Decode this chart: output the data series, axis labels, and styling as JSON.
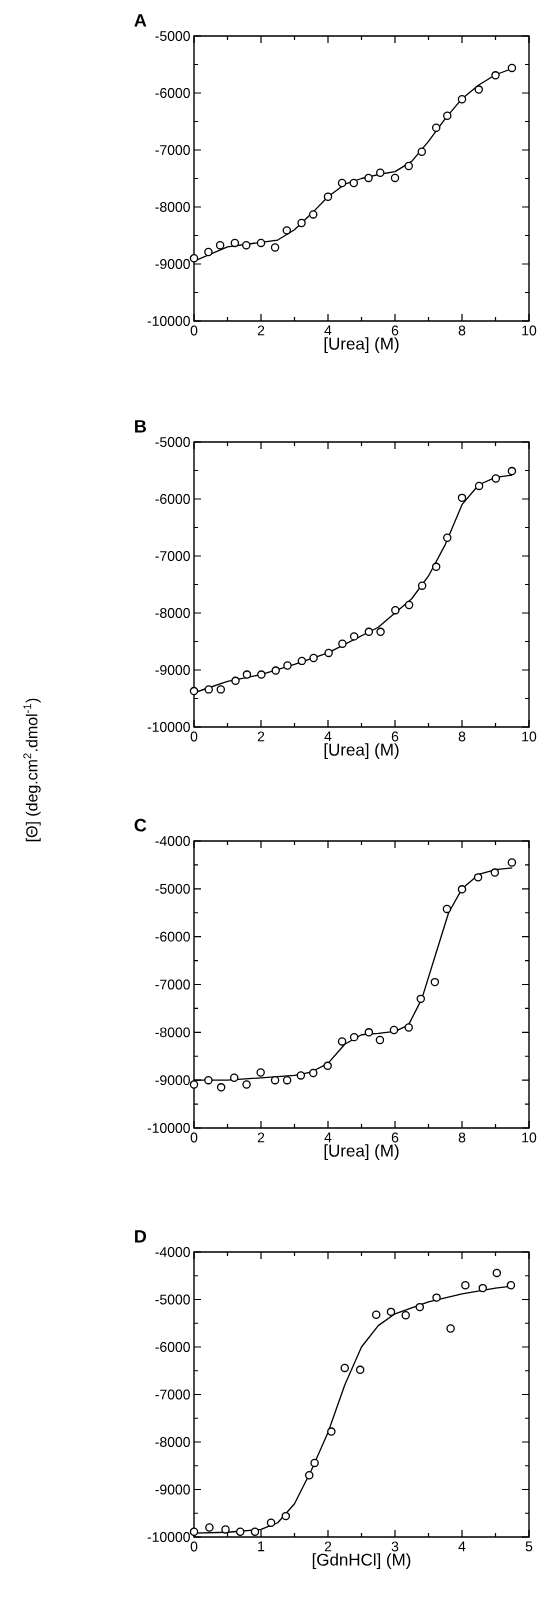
{
  "chart_data": [
    {
      "type": "scatter",
      "title": "A",
      "xlabel": "[Urea] (M)",
      "xlim": [
        0,
        10
      ],
      "xticks": [
        0,
        2,
        4,
        6,
        8,
        10
      ],
      "ylim": [
        -10000,
        -5000
      ],
      "yticks": [
        -10000,
        -9000,
        -8000,
        -7000,
        -6000,
        -5000
      ],
      "series": [
        {
          "marker": "circle",
          "color": "#000000",
          "x": [
            0,
            0.43,
            0.78,
            1.22,
            1.56,
            2.0,
            2.42,
            2.77,
            3.21,
            3.56,
            4.0,
            4.42,
            4.77,
            5.21,
            5.56,
            6.0,
            6.41,
            6.8,
            7.23,
            7.56,
            8.0,
            8.5,
            9.0,
            9.49
          ],
          "values": [
            -8900,
            -8790,
            -8670,
            -8630,
            -8670,
            -8630,
            -8710,
            -8410,
            -8280,
            -8130,
            -7820,
            -7580,
            -7580,
            -7490,
            -7400,
            -7490,
            -7280,
            -7030,
            -6610,
            -6400,
            -6110,
            -5940,
            -5690,
            -5560
          ]
        },
        {
          "type": "line",
          "marker": "none",
          "color": "#000000",
          "x": [
            0,
            1,
            2,
            2.5,
            3,
            3.5,
            4,
            4.5,
            5,
            5.5,
            6,
            6.5,
            7,
            7.5,
            8,
            8.5,
            9,
            9.5
          ],
          "values": [
            -8950,
            -8700,
            -8620,
            -8580,
            -8400,
            -8120,
            -7820,
            -7600,
            -7500,
            -7430,
            -7380,
            -7200,
            -6850,
            -6450,
            -6100,
            -5860,
            -5680,
            -5570
          ]
        }
      ]
    },
    {
      "type": "scatter",
      "title": "B",
      "xlabel": "[Urea] (M)",
      "ylabel": "[Θ] (deg.cm$^{2}$.dmol$^{-1}$)",
      "xlim": [
        0,
        10
      ],
      "xticks": [
        0,
        2,
        4,
        6,
        8,
        10
      ],
      "ylim": [
        -10000,
        -5000
      ],
      "yticks": [
        -10000,
        -9000,
        -8000,
        -7000,
        -6000,
        -5000
      ],
      "series": [
        {
          "marker": "circle",
          "color": "#000000",
          "x": [
            0,
            0.44,
            0.8,
            1.24,
            1.58,
            2.01,
            2.44,
            2.79,
            3.22,
            3.57,
            4.02,
            4.43,
            4.78,
            5.22,
            5.57,
            6.01,
            6.42,
            6.81,
            7.23,
            7.56,
            8.0,
            8.51,
            9.01,
            9.49
          ],
          "values": [
            -9370,
            -9340,
            -9340,
            -9190,
            -9080,
            -9080,
            -9010,
            -8920,
            -8840,
            -8790,
            -8700,
            -8540,
            -8410,
            -8330,
            -8330,
            -7950,
            -7860,
            -7520,
            -7190,
            -6680,
            -5980,
            -5770,
            -5640,
            -5510
          ]
        },
        {
          "type": "line",
          "marker": "none",
          "color": "#000000",
          "x": [
            0,
            1,
            2,
            3,
            4,
            5,
            5.5,
            6,
            6.5,
            7,
            7.5,
            8,
            8.5,
            9,
            9.5
          ],
          "values": [
            -9400,
            -9200,
            -9080,
            -8900,
            -8700,
            -8400,
            -8250,
            -8000,
            -7750,
            -7350,
            -6800,
            -6100,
            -5750,
            -5620,
            -5580
          ]
        }
      ]
    },
    {
      "type": "scatter",
      "title": "C",
      "xlabel": "[Urea] (M)",
      "xlim": [
        0,
        10
      ],
      "xticks": [
        0,
        2,
        4,
        6,
        8,
        10
      ],
      "ylim": [
        -10000,
        -4000
      ],
      "yticks": [
        -10000,
        -9000,
        -8000,
        -7000,
        -6000,
        -5000,
        -4000
      ],
      "series": [
        {
          "marker": "circle",
          "color": "#000000",
          "x": [
            0,
            0.43,
            0.81,
            1.2,
            1.57,
            1.99,
            2.42,
            2.78,
            3.19,
            3.56,
            3.99,
            4.42,
            4.78,
            5.22,
            5.55,
            5.97,
            6.41,
            6.77,
            7.19,
            7.55,
            8.0,
            8.48,
            8.98,
            9.49
          ],
          "values": [
            -9090,
            -9000,
            -9150,
            -8950,
            -9090,
            -8840,
            -9000,
            -9000,
            -8900,
            -8850,
            -8700,
            -8190,
            -8100,
            -8000,
            -8160,
            -7950,
            -7900,
            -7300,
            -6950,
            -5420,
            -5010,
            -4760,
            -4660,
            -4450
          ]
        },
        {
          "type": "line",
          "marker": "none",
          "color": "#000000",
          "x": [
            0,
            1,
            2,
            3,
            3.5,
            4,
            4.5,
            5,
            5.5,
            6,
            6.4,
            6.8,
            7.2,
            7.6,
            8,
            8.5,
            9,
            9.5
          ],
          "values": [
            -9000,
            -9000,
            -8950,
            -8900,
            -8830,
            -8650,
            -8250,
            -8050,
            -8020,
            -7980,
            -7850,
            -7300,
            -6400,
            -5500,
            -5000,
            -4700,
            -4600,
            -4560
          ]
        }
      ]
    },
    {
      "type": "scatter",
      "title": "D",
      "xlabel": "[GdnHCl] (M)",
      "xlim": [
        0,
        5
      ],
      "xticks": [
        0,
        1,
        2,
        3,
        4,
        5
      ],
      "ylim": [
        -10000,
        -4000
      ],
      "yticks": [
        -10000,
        -9000,
        -8000,
        -7000,
        -6000,
        -5000,
        -4000
      ],
      "series": [
        {
          "marker": "circle",
          "color": "#000000",
          "x": [
            0,
            0.23,
            0.47,
            0.69,
            0.91,
            1.15,
            1.37,
            1.72,
            1.8,
            2.05,
            2.25,
            2.48,
            2.72,
            2.94,
            3.16,
            3.37,
            3.62,
            3.83,
            4.05,
            4.31,
            4.52,
            4.73
          ],
          "values": [
            -9890,
            -9800,
            -9840,
            -9890,
            -9890,
            -9700,
            -9560,
            -8700,
            -8440,
            -7780,
            -6440,
            -6480,
            -5320,
            -5260,
            -5330,
            -5160,
            -4960,
            -5610,
            -4700,
            -4760,
            -4440,
            -4700
          ]
        },
        {
          "type": "line",
          "marker": "none",
          "color": "#000000",
          "x": [
            0,
            0.5,
            1,
            1.25,
            1.5,
            1.75,
            2,
            2.25,
            2.5,
            2.75,
            3,
            3.5,
            4,
            4.5,
            4.75
          ],
          "values": [
            -9920,
            -9900,
            -9840,
            -9700,
            -9300,
            -8600,
            -7800,
            -6800,
            -6000,
            -5550,
            -5300,
            -5050,
            -4880,
            -4760,
            -4720
          ]
        }
      ]
    }
  ]
}
